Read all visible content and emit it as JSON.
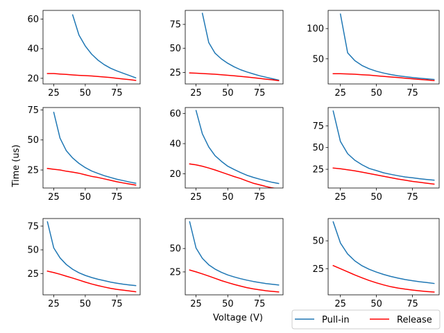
{
  "figure": {
    "xlabel": "Voltage (V)",
    "ylabel": "Time (us)",
    "legend": {
      "placement": "bottom-right",
      "entries": [
        {
          "name": "Pull-in",
          "color": "#1f77b4"
        },
        {
          "name": "Release",
          "color": "#ff0000"
        }
      ]
    }
  },
  "chart_data": [
    {
      "type": "line",
      "xlim": [
        16.5,
        93.5
      ],
      "ylim": [
        16.2,
        65.8
      ],
      "xticks": [
        25,
        50,
        75
      ],
      "yticks": [
        20,
        40,
        60
      ],
      "series": [
        {
          "name": "Pull-in",
          "color": "#1f77b4",
          "x": [
            40,
            45,
            50,
            55,
            60,
            65,
            70,
            75,
            80,
            85,
            90
          ],
          "y": [
            62.8,
            49.2,
            41.8,
            36.3,
            32.3,
            29.2,
            26.8,
            25.0,
            23.4,
            21.9,
            20.3
          ]
        },
        {
          "name": "Release",
          "color": "#ff0000",
          "x": [
            20,
            25,
            30,
            35,
            40,
            45,
            50,
            55,
            60,
            65,
            70,
            75,
            80,
            85,
            90
          ],
          "y": [
            23.2,
            23.2,
            22.9,
            22.6,
            22.3,
            22.0,
            21.8,
            21.6,
            21.2,
            20.9,
            20.5,
            20.0,
            19.5,
            19.1,
            18.6
          ]
        }
      ]
    },
    {
      "type": "line",
      "xlim": [
        16.5,
        93.5
      ],
      "ylim": [
        13.0,
        89.5
      ],
      "xticks": [
        25,
        50,
        75
      ],
      "yticks": [
        25,
        50,
        75
      ],
      "series": [
        {
          "name": "Pull-in",
          "color": "#1f77b4",
          "x": [
            30,
            35,
            40,
            45,
            50,
            55,
            60,
            65,
            70,
            75,
            80,
            85,
            90
          ],
          "y": [
            86.5,
            56.0,
            45.0,
            39.0,
            34.5,
            30.8,
            27.8,
            25.5,
            23.5,
            21.5,
            20.0,
            18.5,
            17.0
          ]
        },
        {
          "name": "Release",
          "color": "#ff0000",
          "x": [
            20,
            25,
            30,
            35,
            40,
            45,
            50,
            55,
            60,
            65,
            70,
            75,
            80,
            85,
            90
          ],
          "y": [
            24.5,
            24.2,
            23.8,
            23.5,
            23.1,
            22.6,
            22.0,
            21.5,
            20.9,
            20.2,
            19.5,
            18.8,
            18.0,
            17.3,
            16.4
          ]
        }
      ]
    },
    {
      "type": "line",
      "xlim": [
        16.5,
        93.5
      ],
      "ylim": [
        8.5,
        130.0
      ],
      "xticks": [
        25,
        50,
        75
      ],
      "yticks": [
        50,
        100
      ],
      "series": [
        {
          "name": "Pull-in",
          "color": "#1f77b4",
          "x": [
            25,
            30,
            35,
            40,
            45,
            50,
            55,
            60,
            65,
            70,
            75,
            80,
            85,
            90
          ],
          "y": [
            124.0,
            60.0,
            47.0,
            39.0,
            33.5,
            29.5,
            26.5,
            24.0,
            22.0,
            20.5,
            19.2,
            18.0,
            17.0,
            16.0
          ]
        },
        {
          "name": "Release",
          "color": "#ff0000",
          "x": [
            20,
            25,
            30,
            35,
            40,
            45,
            50,
            55,
            60,
            65,
            70,
            75,
            80,
            85,
            90
          ],
          "y": [
            25.5,
            25.3,
            25.0,
            24.5,
            23.8,
            23.0,
            22.0,
            21.0,
            20.0,
            19.0,
            18.0,
            17.0,
            16.0,
            15.0,
            14.0
          ]
        }
      ]
    },
    {
      "type": "line",
      "xlim": [
        16.5,
        93.5
      ],
      "ylim": [
        10.0,
        77.0
      ],
      "xticks": [
        25,
        50,
        75
      ],
      "yticks": [
        25,
        50,
        75
      ],
      "series": [
        {
          "name": "Pull-in",
          "color": "#1f77b4",
          "x": [
            25,
            30,
            35,
            40,
            45,
            50,
            55,
            60,
            65,
            70,
            75,
            80,
            85,
            90
          ],
          "y": [
            73.0,
            51.5,
            41.0,
            35.0,
            30.5,
            27.0,
            24.2,
            22.2,
            20.3,
            18.8,
            17.3,
            16.2,
            15.0,
            14.0
          ]
        },
        {
          "name": "Release",
          "color": "#ff0000",
          "x": [
            20,
            25,
            30,
            35,
            40,
            45,
            50,
            55,
            60,
            65,
            70,
            75,
            80,
            85,
            90
          ],
          "y": [
            26.3,
            25.6,
            25.0,
            24.0,
            23.2,
            22.3,
            21.0,
            19.7,
            18.8,
            17.6,
            16.4,
            15.2,
            14.2,
            13.3,
            12.4
          ]
        }
      ]
    },
    {
      "type": "line",
      "xlim": [
        16.5,
        93.5
      ],
      "ylim": [
        10.5,
        64.0
      ],
      "xticks": [
        25,
        50,
        75
      ],
      "yticks": [
        20,
        40,
        60
      ],
      "series": [
        {
          "name": "Pull-in",
          "color": "#1f77b4",
          "x": [
            25,
            30,
            35,
            40,
            45,
            50,
            55,
            60,
            65,
            70,
            75,
            80,
            85,
            90
          ],
          "y": [
            62.0,
            46.5,
            37.8,
            32.0,
            28.2,
            25.0,
            22.8,
            20.8,
            19.0,
            17.6,
            16.4,
            15.3,
            14.3,
            13.5
          ]
        },
        {
          "name": "Release",
          "color": "#ff0000",
          "x": [
            20,
            25,
            30,
            35,
            40,
            45,
            50,
            55,
            60,
            65,
            70,
            75,
            80,
            85,
            90
          ],
          "y": [
            26.5,
            25.9,
            25.0,
            23.8,
            22.5,
            21.0,
            19.6,
            18.1,
            16.8,
            15.2,
            13.7,
            12.6,
            11.5,
            10.6,
            9.8
          ]
        }
      ]
    },
    {
      "type": "line",
      "xlim": [
        16.5,
        93.5
      ],
      "ylim": [
        3.5,
        96.0
      ],
      "xticks": [
        25,
        50,
        75
      ],
      "yticks": [
        25,
        50,
        75
      ],
      "series": [
        {
          "name": "Pull-in",
          "color": "#1f77b4",
          "x": [
            20,
            25,
            30,
            35,
            40,
            45,
            50,
            55,
            60,
            65,
            70,
            75,
            80,
            85,
            90
          ],
          "y": [
            92.0,
            57.0,
            43.0,
            35.5,
            30.2,
            26.0,
            23.5,
            21.0,
            19.2,
            17.6,
            16.2,
            15.2,
            14.2,
            13.3,
            12.5
          ]
        },
        {
          "name": "Release",
          "color": "#ff0000",
          "x": [
            20,
            25,
            30,
            35,
            40,
            45,
            50,
            55,
            60,
            65,
            70,
            75,
            80,
            85,
            90
          ],
          "y": [
            26.5,
            25.6,
            24.5,
            23.2,
            21.8,
            20.2,
            18.6,
            17.0,
            15.4,
            13.8,
            12.4,
            11.1,
            10.0,
            9.0,
            8.0
          ]
        }
      ]
    },
    {
      "type": "line",
      "xlim": [
        16.5,
        93.5
      ],
      "ylim": [
        2.5,
        83.0
      ],
      "xticks": [
        25,
        50,
        75
      ],
      "yticks": [
        25,
        50,
        75
      ],
      "series": [
        {
          "name": "Pull-in",
          "color": "#1f77b4",
          "x": [
            20,
            25,
            30,
            35,
            40,
            45,
            50,
            55,
            60,
            65,
            70,
            75,
            80,
            85,
            90
          ],
          "y": [
            79.5,
            52.0,
            41.5,
            34.5,
            29.5,
            25.8,
            23.0,
            20.8,
            19.0,
            17.5,
            16.0,
            14.8,
            13.8,
            13.0,
            12.2
          ]
        },
        {
          "name": "Release",
          "color": "#ff0000",
          "x": [
            20,
            25,
            30,
            35,
            40,
            45,
            50,
            55,
            60,
            65,
            70,
            75,
            80,
            85,
            90
          ],
          "y": [
            27.5,
            26.0,
            24.2,
            22.2,
            20.2,
            18.1,
            16.0,
            14.0,
            12.3,
            10.8,
            9.4,
            8.3,
            7.4,
            6.6,
            5.8
          ]
        }
      ]
    },
    {
      "type": "line",
      "xlim": [
        16.5,
        93.5
      ],
      "ylim": [
        0.5,
        82.0
      ],
      "xticks": [
        25,
        50,
        75
      ],
      "yticks": [
        25,
        50
      ],
      "series": [
        {
          "name": "Pull-in",
          "color": "#1f77b4",
          "x": [
            20,
            25,
            30,
            35,
            40,
            45,
            50,
            55,
            60,
            65,
            70,
            75,
            80,
            85,
            90
          ],
          "y": [
            78.5,
            50.5,
            39.5,
            32.6,
            28.0,
            24.5,
            21.8,
            19.6,
            17.8,
            16.2,
            14.8,
            13.6,
            12.6,
            11.8,
            11.0
          ]
        },
        {
          "name": "Release",
          "color": "#ff0000",
          "x": [
            20,
            25,
            30,
            35,
            40,
            45,
            50,
            55,
            60,
            65,
            70,
            75,
            80,
            85,
            90
          ],
          "y": [
            27.0,
            25.0,
            22.9,
            20.6,
            18.1,
            15.7,
            13.6,
            11.6,
            9.8,
            8.2,
            6.9,
            5.8,
            4.9,
            4.2,
            3.6
          ]
        }
      ]
    },
    {
      "type": "line",
      "xlim": [
        16.5,
        93.5
      ],
      "ylim": [
        1.5,
        70.0
      ],
      "xticks": [
        25,
        50,
        75
      ],
      "yticks": [
        25,
        50
      ],
      "series": [
        {
          "name": "Pull-in",
          "color": "#1f77b4",
          "x": [
            20,
            25,
            30,
            35,
            40,
            45,
            50,
            55,
            60,
            65,
            70,
            75,
            80,
            85,
            90
          ],
          "y": [
            67.0,
            48.0,
            38.2,
            32.0,
            27.6,
            24.4,
            21.9,
            19.8,
            18.0,
            16.5,
            15.2,
            14.2,
            13.3,
            12.5,
            11.7
          ]
        },
        {
          "name": "Release",
          "color": "#ff0000",
          "x": [
            20,
            25,
            30,
            35,
            40,
            45,
            50,
            55,
            60,
            65,
            70,
            75,
            80,
            85,
            90
          ],
          "y": [
            27.8,
            25.0,
            22.2,
            19.4,
            16.8,
            14.4,
            12.3,
            10.4,
            8.8,
            7.6,
            6.6,
            5.8,
            5.1,
            4.5,
            4.0
          ]
        }
      ]
    }
  ]
}
